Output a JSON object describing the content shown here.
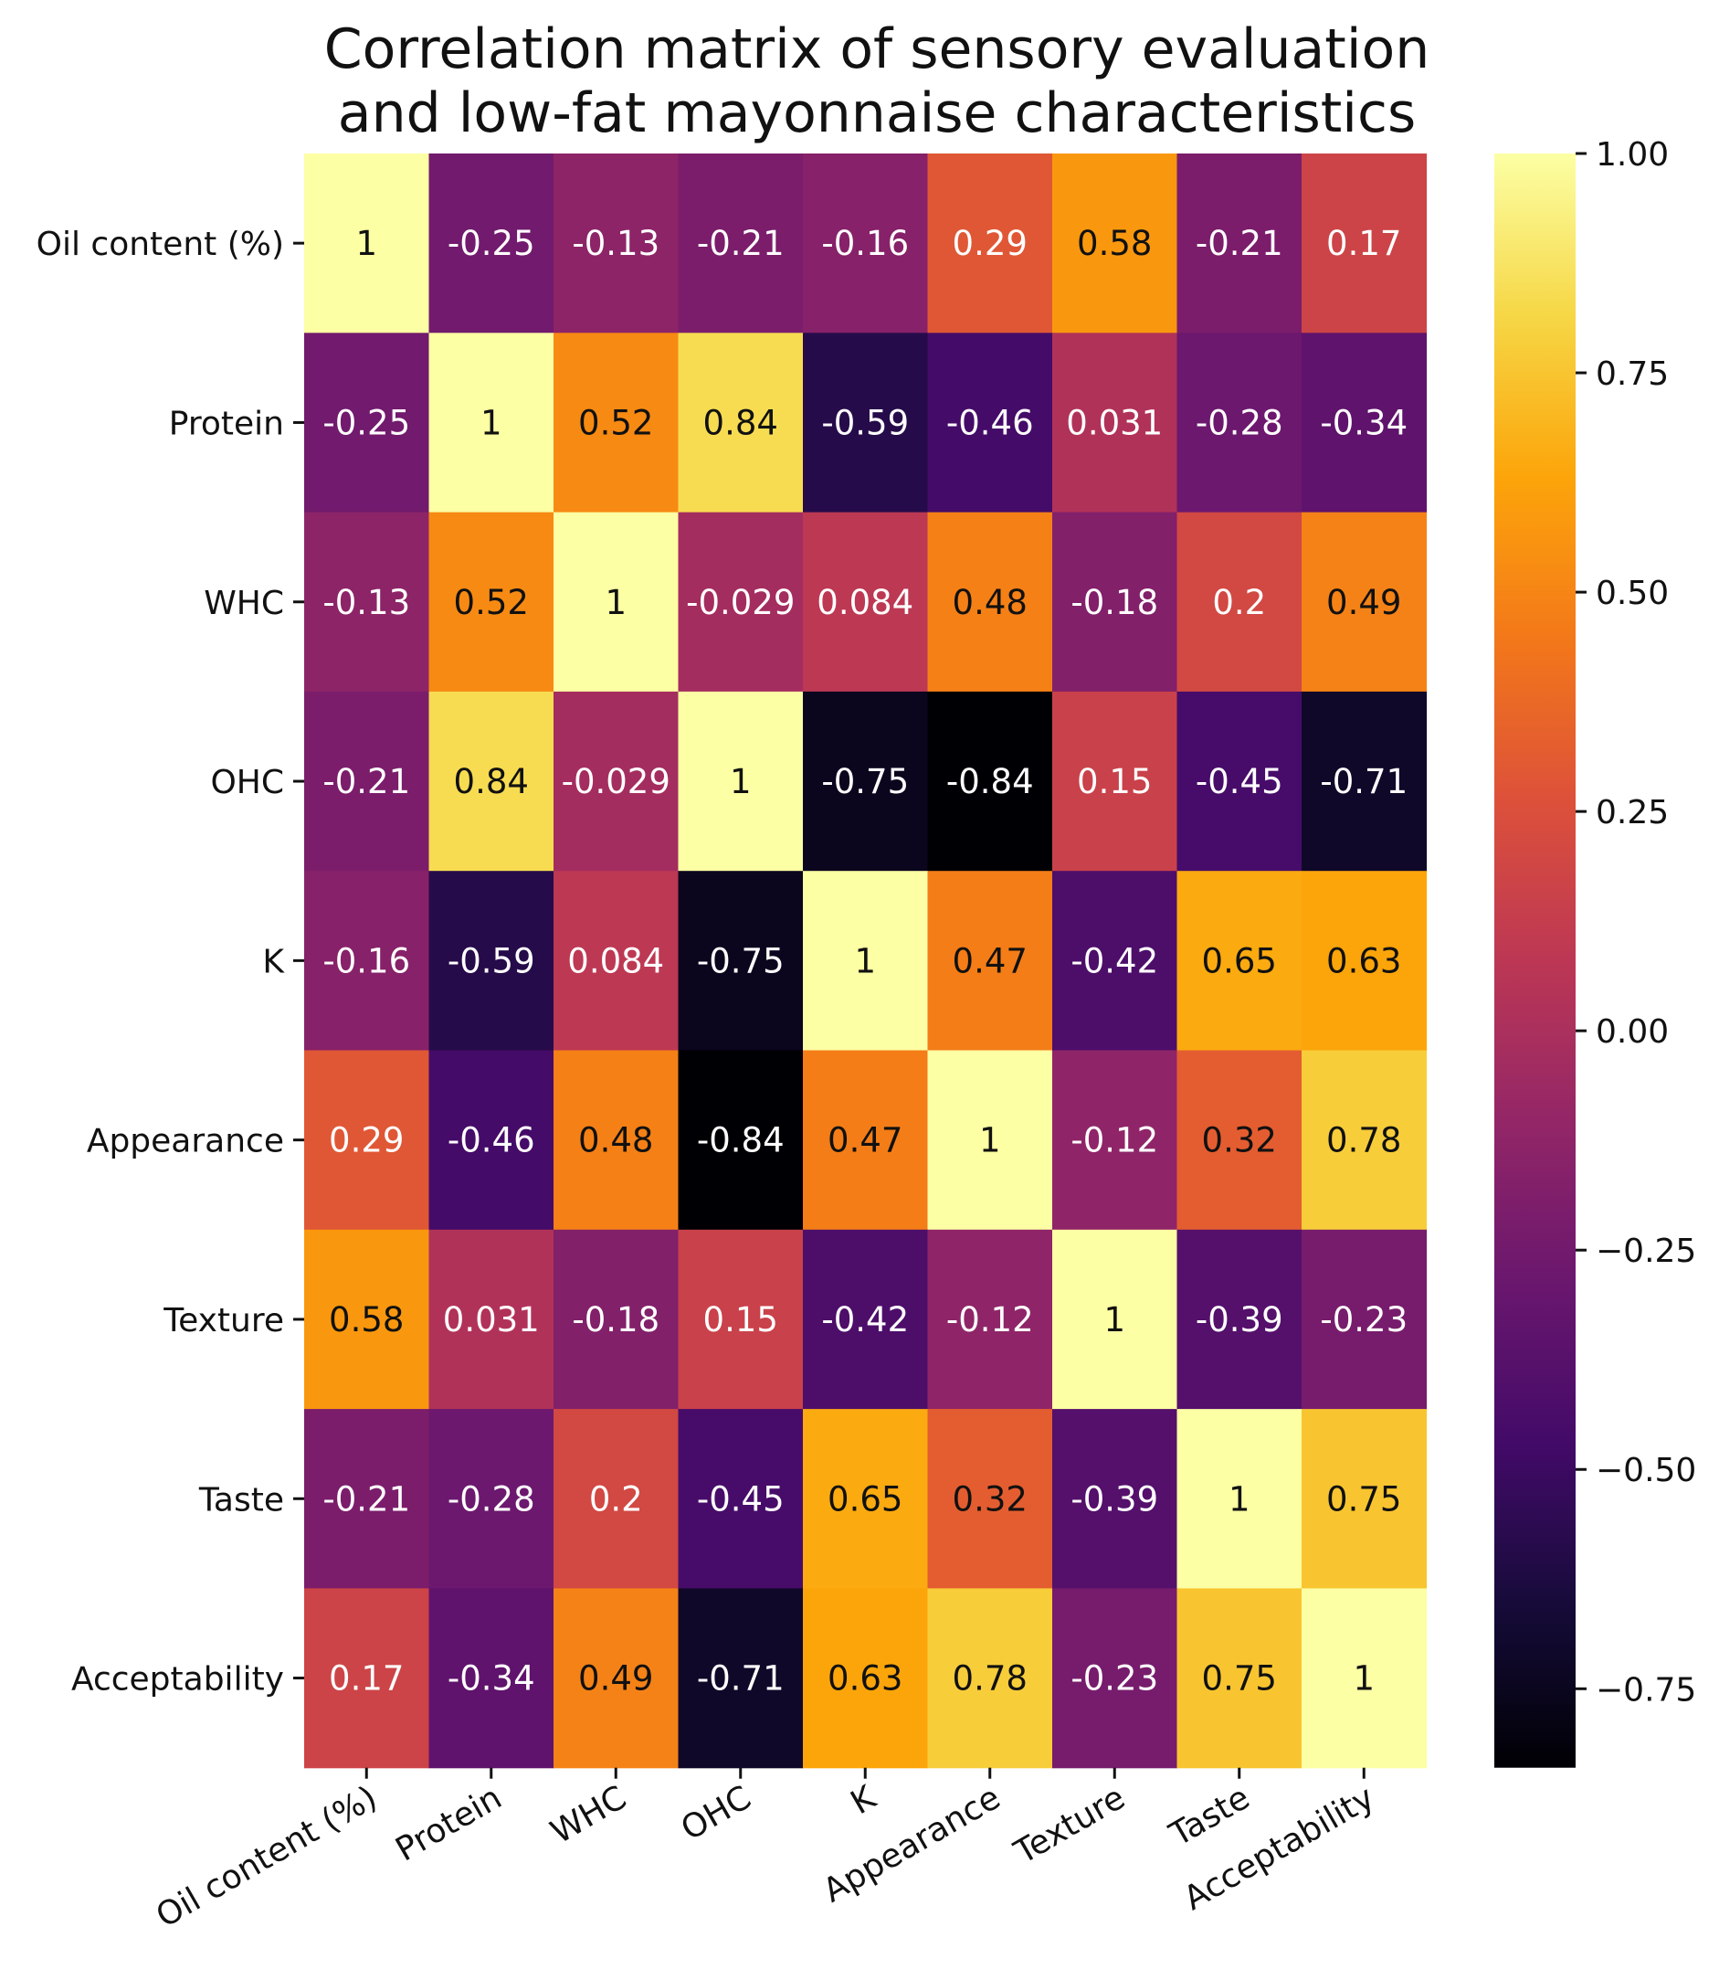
{
  "chart_data": {
    "type": "heatmap",
    "title_lines": [
      "Correlation matrix of sensory evaluation",
      "and low-fat mayonnaise characteristics"
    ],
    "row_labels": [
      "Oil content (%)",
      "Protein",
      "WHC",
      "OHC",
      "K",
      "Appearance",
      "Texture",
      "Taste",
      "Acceptability"
    ],
    "col_labels": [
      "Oil content (%)",
      "Protein",
      "WHC",
      "OHC",
      "K",
      "Appearance",
      "Texture",
      "Taste",
      "Acceptability"
    ],
    "values": [
      [
        1,
        -0.25,
        -0.13,
        -0.21,
        -0.16,
        0.29,
        0.58,
        -0.21,
        0.17
      ],
      [
        -0.25,
        1,
        0.52,
        0.84,
        -0.59,
        -0.46,
        0.031,
        -0.28,
        -0.34
      ],
      [
        -0.13,
        0.52,
        1,
        -0.029,
        0.084,
        0.48,
        -0.18,
        0.2,
        0.49
      ],
      [
        -0.21,
        0.84,
        -0.029,
        1,
        -0.75,
        -0.84,
        0.15,
        -0.45,
        -0.71
      ],
      [
        -0.16,
        -0.59,
        0.084,
        -0.75,
        1,
        0.47,
        -0.42,
        0.65,
        0.63
      ],
      [
        0.29,
        -0.46,
        0.48,
        -0.84,
        0.47,
        1,
        -0.12,
        0.32,
        0.78
      ],
      [
        0.58,
        0.031,
        -0.18,
        0.15,
        -0.42,
        -0.12,
        1,
        -0.39,
        -0.23
      ],
      [
        -0.21,
        -0.28,
        0.2,
        -0.45,
        0.65,
        0.32,
        -0.39,
        1,
        0.75
      ],
      [
        0.17,
        -0.34,
        0.49,
        -0.71,
        0.63,
        0.78,
        -0.23,
        0.75,
        1
      ]
    ],
    "cell_text": [
      [
        "1",
        "-0.25",
        "-0.13",
        "-0.21",
        "-0.16",
        "0.29",
        "0.58",
        "-0.21",
        "0.17"
      ],
      [
        "-0.25",
        "1",
        "0.52",
        "0.84",
        "-0.59",
        "-0.46",
        "0.031",
        "-0.28",
        "-0.34"
      ],
      [
        "-0.13",
        "0.52",
        "1",
        "-0.029",
        "0.084",
        "0.48",
        "-0.18",
        "0.2",
        "0.49"
      ],
      [
        "-0.21",
        "0.84",
        "-0.029",
        "1",
        "-0.75",
        "-0.84",
        "0.15",
        "-0.45",
        "-0.71"
      ],
      [
        "-0.16",
        "-0.59",
        "0.084",
        "-0.75",
        "1",
        "0.47",
        "-0.42",
        "0.65",
        "0.63"
      ],
      [
        "0.29",
        "-0.46",
        "0.48",
        "-0.84",
        "0.47",
        "1",
        "-0.12",
        "0.32",
        "0.78"
      ],
      [
        "0.58",
        "0.031",
        "-0.18",
        "0.15",
        "-0.42",
        "-0.12",
        "1",
        "-0.39",
        "-0.23"
      ],
      [
        "-0.21",
        "-0.28",
        "0.2",
        "-0.45",
        "0.65",
        "0.32",
        "-0.39",
        "1",
        "0.75"
      ],
      [
        "0.17",
        "-0.34",
        "0.49",
        "-0.71",
        "0.63",
        "0.78",
        "-0.23",
        "0.75",
        "1"
      ]
    ],
    "colormap": "inferno",
    "vmin": -0.84,
    "vmax": 1.0,
    "colorbar_ticks": [
      1.0,
      0.75,
      0.5,
      0.25,
      0.0,
      -0.25,
      -0.5,
      -0.75
    ],
    "colorbar_tick_labels": [
      "1.00",
      "0.75",
      "0.50",
      "0.25",
      "0.00",
      "−0.25",
      "−0.50",
      "−0.75"
    ],
    "text_dark_color": "#111111",
    "text_light_color": "#ffffff"
  }
}
